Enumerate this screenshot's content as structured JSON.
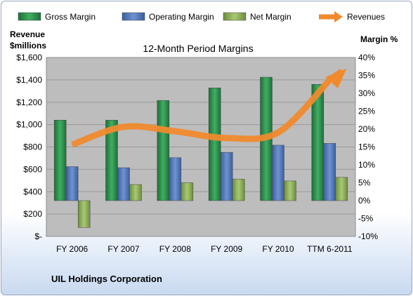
{
  "chart_data": {
    "type": "bar",
    "title": "12-Month Period Margins",
    "categories": [
      "FY 2006",
      "FY 2007",
      "FY 2008",
      "FY 2009",
      "FY 2010",
      "TTM 6-2011"
    ],
    "series": [
      {
        "name": "Gross Margin",
        "axis": "right",
        "values": [
          22.5,
          22.5,
          28,
          31.5,
          34.5,
          32.5
        ],
        "color": "#2e8b4a"
      },
      {
        "name": "Operating Margin",
        "axis": "right",
        "values": [
          9.5,
          9.2,
          12,
          13.5,
          15.5,
          16
        ],
        "color": "#4f73b6"
      },
      {
        "name": "Net Margin",
        "axis": "right",
        "values": [
          -7.5,
          4.5,
          5,
          6,
          5.5,
          6.5
        ],
        "color": "#8fb255"
      },
      {
        "name": "Revenues",
        "axis": "left",
        "type": "line",
        "values": [
          820,
          980,
          940,
          880,
          930,
          1400
        ],
        "color": "#f08a2d"
      }
    ],
    "left_axis": {
      "label_line1": "Revenue",
      "label_line2": "$millions",
      "min": 0,
      "max": 1600,
      "step": 200,
      "ticks": [
        "$-",
        "$200",
        "$400",
        "$600",
        "$800",
        "$1,000",
        "$1,200",
        "$1,400",
        "$1,600"
      ]
    },
    "right_axis": {
      "label": "Margin %",
      "min": -10,
      "max": 40,
      "step": 5,
      "ticks": [
        "-10%",
        "-5%",
        "0%",
        "5%",
        "10%",
        "15%",
        "20%",
        "25%",
        "30%",
        "35%",
        "40%"
      ]
    },
    "legend_position": "top",
    "grid": true,
    "plot_background": "#bdbdbd"
  },
  "footer": {
    "company": "UIL Holdings Corporation"
  }
}
